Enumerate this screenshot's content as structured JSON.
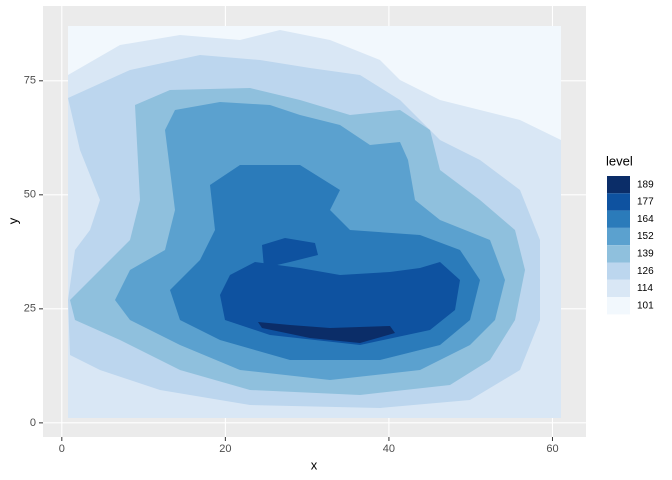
{
  "chart_data": {
    "type": "contour",
    "xlabel": "x",
    "ylabel": "y",
    "xlim": [
      -2.3,
      64.1
    ],
    "ylim": [
      -3.1,
      91.4
    ],
    "xticks": [
      0,
      20,
      40,
      60
    ],
    "yticks": [
      0,
      25,
      50,
      75
    ],
    "grid": true,
    "legend_title": "level",
    "legend_position": "right",
    "levels": [
      101,
      114,
      126,
      139,
      152,
      164,
      177,
      189
    ],
    "colors": [
      "#f2f8fd",
      "#d9e7f5",
      "#bcd6ee",
      "#8fc0dd",
      "#5ba1cf",
      "#2b7bba",
      "#0e52a0",
      "#0b2d68"
    ]
  }
}
